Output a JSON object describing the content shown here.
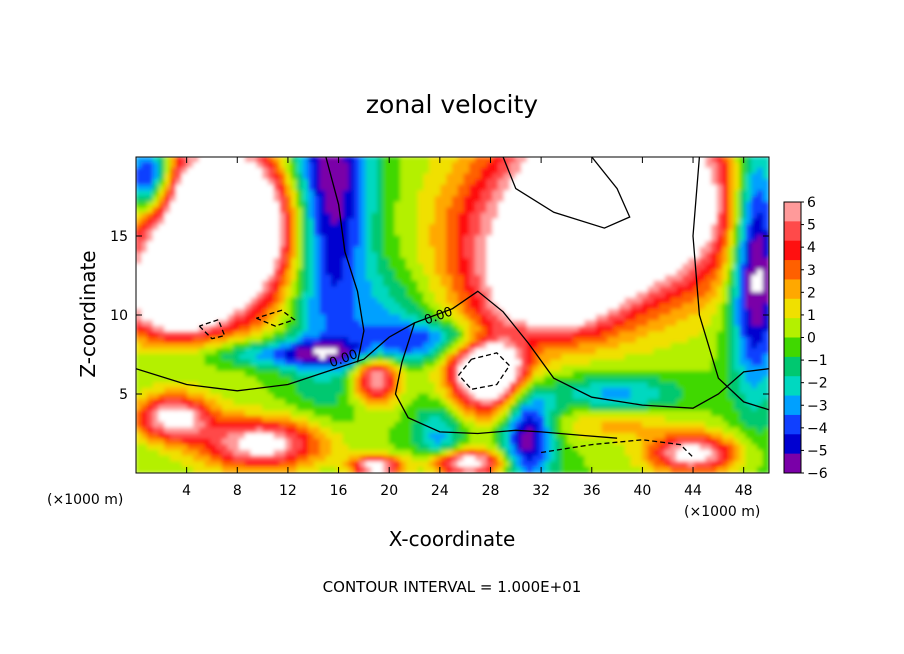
{
  "chart_data": {
    "type": "heatmap",
    "title": "zonal velocity",
    "xlabel": "X-coordinate",
    "ylabel": "Z-coordinate",
    "x_unit_note": "(×1000 m)",
    "footer": "CONTOUR INTERVAL = 1.000E+01",
    "xlim": [
      0,
      50
    ],
    "ylim": [
      0,
      20
    ],
    "x_ticks": [
      4,
      8,
      12,
      16,
      20,
      24,
      28,
      32,
      36,
      40,
      44,
      48
    ],
    "y_ticks": [
      5,
      10,
      15
    ],
    "x_tick_labels": [
      "4",
      "8",
      "12",
      "16",
      "20",
      "24",
      "28",
      "32",
      "36",
      "40",
      "44",
      "48"
    ],
    "y_tick_labels": [
      "5",
      "10",
      "15"
    ],
    "colorbar": {
      "levels": [
        6,
        5,
        4,
        3,
        2,
        1,
        0,
        -1,
        -2,
        -3,
        -4,
        -5,
        -6
      ],
      "labels": [
        "6",
        "5",
        "4",
        "3",
        "2",
        "1",
        "0",
        "−1",
        "−2",
        "−3",
        "−4",
        "−5",
        "−6"
      ],
      "colors": [
        "#ff9a9a",
        "#ff4a4a",
        "#ff1010",
        "#ff6000",
        "#ffa800",
        "#f0e000",
        "#b4f000",
        "#40d800",
        "#00c870",
        "#00d8c0",
        "#00a0ff",
        "#1040ff",
        "#0000d0",
        "#7a00a8"
      ]
    },
    "contour_labels": [
      {
        "text": "0.00",
        "x": 16.5,
        "y": 7.0
      },
      {
        "text": "0.00",
        "x": 24.0,
        "y": 9.7
      }
    ],
    "saturation_colors": {
      "above": "#ffffff",
      "below": "#ffffff"
    }
  }
}
